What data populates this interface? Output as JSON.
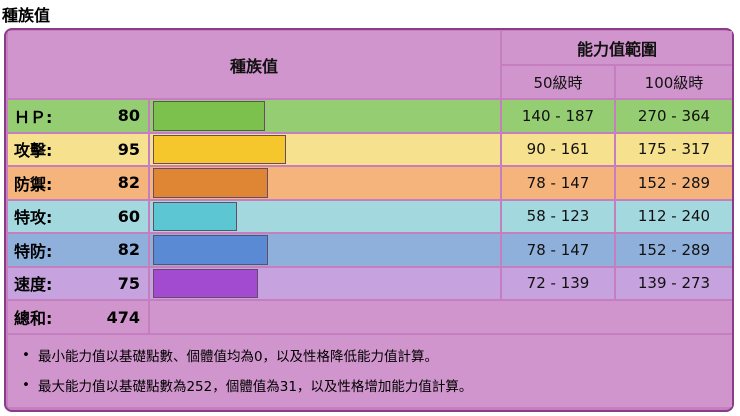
{
  "title": "種族值",
  "table": {
    "header": {
      "base": "種族值",
      "range": "能力值範圍",
      "lv50": "50級時",
      "lv100": "100級時"
    },
    "rows": [
      {
        "name": "ＨＰ:",
        "value": 80,
        "lv50": "140 - 187",
        "lv100": "270 - 364",
        "row_color": "#95cd72",
        "bar_color": "#7cc04e"
      },
      {
        "name": "攻擊:",
        "value": 95,
        "lv50": "90 - 161",
        "lv100": "175 - 317",
        "row_color": "#f6e28e",
        "bar_color": "#f6c72c"
      },
      {
        "name": "防禦:",
        "value": 82,
        "lv50": "78 - 147",
        "lv100": "152 - 289",
        "row_color": "#f4b47c",
        "bar_color": "#de8634"
      },
      {
        "name": "特攻:",
        "value": 60,
        "lv50": "58 - 123",
        "lv100": "112 - 240",
        "row_color": "#a2d8de",
        "bar_color": "#5cc6d2"
      },
      {
        "name": "特防:",
        "value": 82,
        "lv50": "78 - 147",
        "lv100": "152 - 289",
        "row_color": "#90b0dc",
        "bar_color": "#5a8ad4"
      },
      {
        "name": "速度:",
        "value": 75,
        "lv50": "72 - 139",
        "lv100": "139 - 273",
        "row_color": "#c6a2de",
        "bar_color": "#a24ad0"
      }
    ],
    "total": {
      "name": "總和:",
      "value": 474
    }
  },
  "notes": [
    "最小能力值以基礎點數、個體值均為0，以及性格降低能力值計算。",
    "最大能力值以基礎點數為252，個體值為31，以及性格增加能力值計算。"
  ]
}
